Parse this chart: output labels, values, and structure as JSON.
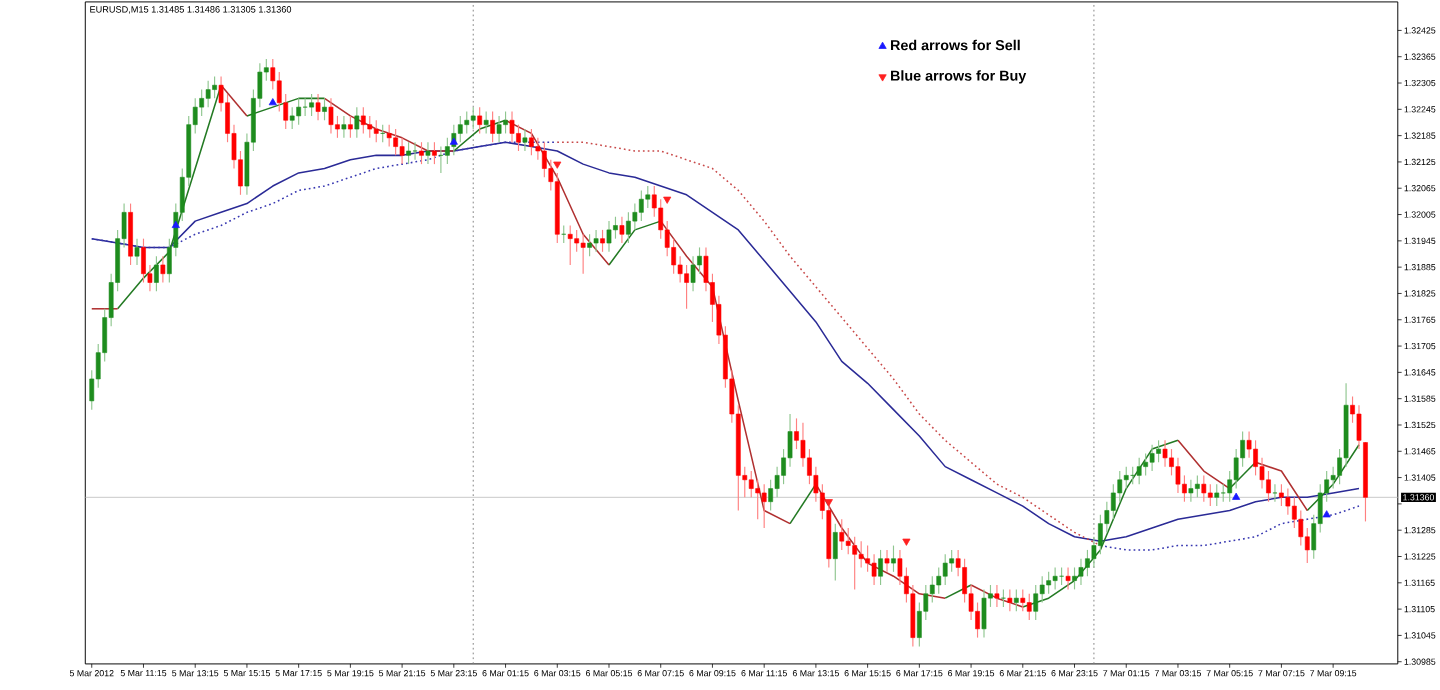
{
  "chart_data": {
    "type": "candlestick",
    "title": "EURUSD,M15  1.31485 1.31486 1.31305 1.31360",
    "x": [
      "2012-03-05T09:15",
      "2012-03-05T09:30",
      "2012-03-05T09:45",
      "2012-03-05T10:00",
      "2012-03-05T10:15",
      "2012-03-05T10:30",
      "2012-03-05T10:45",
      "2012-03-05T11:00",
      "2012-03-05T11:15",
      "2012-03-05T11:30",
      "2012-03-05T11:45",
      "2012-03-05T12:00",
      "2012-03-05T12:15",
      "2012-03-05T12:30",
      "2012-03-05T12:45",
      "2012-03-05T13:00",
      "2012-03-05T13:15",
      "2012-03-05T13:30",
      "2012-03-05T13:45",
      "2012-03-05T14:00",
      "2012-03-05T14:15",
      "2012-03-05T14:30",
      "2012-03-05T14:45",
      "2012-03-05T15:00",
      "2012-03-05T15:15",
      "2012-03-05T15:30",
      "2012-03-05T15:45",
      "2012-03-05T16:00",
      "2012-03-05T16:15",
      "2012-03-05T16:30",
      "2012-03-05T16:45",
      "2012-03-05T17:00",
      "2012-03-05T17:15",
      "2012-03-05T17:30",
      "2012-03-05T17:45",
      "2012-03-05T18:00",
      "2012-03-05T18:15",
      "2012-03-05T18:30",
      "2012-03-05T18:45",
      "2012-03-05T19:00",
      "2012-03-05T19:15",
      "2012-03-05T19:30",
      "2012-03-05T19:45",
      "2012-03-05T20:00",
      "2012-03-05T20:15",
      "2012-03-05T20:30",
      "2012-03-05T20:45",
      "2012-03-05T21:00",
      "2012-03-05T21:15",
      "2012-03-05T21:30",
      "2012-03-05T21:45",
      "2012-03-05T22:00",
      "2012-03-05T22:15",
      "2012-03-05T22:30",
      "2012-03-05T22:45",
      "2012-03-05T23:00",
      "2012-03-05T23:15",
      "2012-03-05T23:30",
      "2012-03-05T23:45",
      "2012-03-06T00:00",
      "2012-03-06T00:15",
      "2012-03-06T00:30",
      "2012-03-06T00:45",
      "2012-03-06T01:00",
      "2012-03-06T01:15",
      "2012-03-06T01:30",
      "2012-03-06T01:45",
      "2012-03-06T02:00",
      "2012-03-06T02:15",
      "2012-03-06T02:30",
      "2012-03-06T02:45",
      "2012-03-06T03:00",
      "2012-03-06T03:15",
      "2012-03-06T03:30",
      "2012-03-06T03:45",
      "2012-03-06T04:00",
      "2012-03-06T04:15",
      "2012-03-06T04:30",
      "2012-03-06T04:45",
      "2012-03-06T05:00",
      "2012-03-06T05:15",
      "2012-03-06T05:30",
      "2012-03-06T05:45",
      "2012-03-06T06:00",
      "2012-03-06T06:15",
      "2012-03-06T06:30",
      "2012-03-06T06:45",
      "2012-03-06T07:00",
      "2012-03-06T07:15",
      "2012-03-06T07:30",
      "2012-03-06T07:45",
      "2012-03-06T08:00",
      "2012-03-06T08:15",
      "2012-03-06T08:30",
      "2012-03-06T08:45",
      "2012-03-06T09:00",
      "2012-03-06T09:15",
      "2012-03-06T09:30",
      "2012-03-06T09:45",
      "2012-03-06T10:00",
      "2012-03-06T10:15",
      "2012-03-06T10:30",
      "2012-03-06T10:45",
      "2012-03-06T11:00",
      "2012-03-06T11:15",
      "2012-03-06T11:30",
      "2012-03-06T11:45",
      "2012-03-06T12:00",
      "2012-03-06T12:15",
      "2012-03-06T12:30",
      "2012-03-06T12:45",
      "2012-03-06T13:00",
      "2012-03-06T13:15",
      "2012-03-06T13:30",
      "2012-03-06T13:45",
      "2012-03-06T14:00",
      "2012-03-06T14:15",
      "2012-03-06T14:30",
      "2012-03-06T14:45",
      "2012-03-06T15:00",
      "2012-03-06T15:15",
      "2012-03-06T15:30",
      "2012-03-06T15:45",
      "2012-03-06T16:00",
      "2012-03-06T16:15",
      "2012-03-06T16:30",
      "2012-03-06T16:45",
      "2012-03-06T17:00",
      "2012-03-06T17:15",
      "2012-03-06T17:30",
      "2012-03-06T17:45",
      "2012-03-06T18:00",
      "2012-03-06T18:15",
      "2012-03-06T18:30",
      "2012-03-06T18:45",
      "2012-03-06T19:00",
      "2012-03-06T19:15",
      "2012-03-06T19:30",
      "2012-03-06T19:45",
      "2012-03-06T20:00",
      "2012-03-06T20:15",
      "2012-03-06T20:30",
      "2012-03-06T20:45",
      "2012-03-06T21:00",
      "2012-03-06T21:15",
      "2012-03-06T21:30",
      "2012-03-06T21:45",
      "2012-03-06T22:00",
      "2012-03-06T22:15",
      "2012-03-06T22:30",
      "2012-03-06T22:45",
      "2012-03-06T23:00",
      "2012-03-06T23:15",
      "2012-03-06T23:30",
      "2012-03-06T23:45",
      "2012-03-07T00:00",
      "2012-03-07T00:15",
      "2012-03-07T00:30",
      "2012-03-07T00:45",
      "2012-03-07T01:00",
      "2012-03-07T01:15",
      "2012-03-07T01:30",
      "2012-03-07T01:45",
      "2012-03-07T02:00",
      "2012-03-07T02:15",
      "2012-03-07T02:30",
      "2012-03-07T02:45",
      "2012-03-07T03:00",
      "2012-03-07T03:15",
      "2012-03-07T03:30",
      "2012-03-07T03:45",
      "2012-03-07T04:00",
      "2012-03-07T04:15",
      "2012-03-07T04:30",
      "2012-03-07T04:45",
      "2012-03-07T05:00",
      "2012-03-07T05:15",
      "2012-03-07T05:30",
      "2012-03-07T05:45",
      "2012-03-07T06:00",
      "2012-03-07T06:15",
      "2012-03-07T06:30",
      "2012-03-07T06:45",
      "2012-03-07T07:00",
      "2012-03-07T07:15",
      "2012-03-07T07:30",
      "2012-03-07T07:45",
      "2012-03-07T08:00",
      "2012-03-07T08:15",
      "2012-03-07T08:30",
      "2012-03-07T08:45",
      "2012-03-07T09:00",
      "2012-03-07T09:15",
      "2012-03-07T09:30",
      "2012-03-07T09:45",
      "2012-03-07T10:00",
      "2012-03-07T10:15",
      "2012-03-07T10:30"
    ],
    "ohlc": [
      [
        1.3158,
        1.3165,
        1.3156,
        1.3163
      ],
      [
        1.3163,
        1.3171,
        1.3161,
        1.3169
      ],
      [
        1.3169,
        1.3179,
        1.3167,
        1.3177
      ],
      [
        1.3177,
        1.3187,
        1.3175,
        1.3185
      ],
      [
        1.3185,
        1.3197,
        1.3183,
        1.3195
      ],
      [
        1.3195,
        1.3203,
        1.3193,
        1.3201
      ],
      [
        1.3201,
        1.3203,
        1.3189,
        1.3191
      ],
      [
        1.3191,
        1.3195,
        1.3189,
        1.3193
      ],
      [
        1.3193,
        1.3195,
        1.3185,
        1.3187
      ],
      [
        1.3187,
        1.3189,
        1.3183,
        1.3185
      ],
      [
        1.3185,
        1.3191,
        1.3183,
        1.3189
      ],
      [
        1.3189,
        1.3191,
        1.3185,
        1.3187
      ],
      [
        1.3187,
        1.3195,
        1.3185,
        1.3193
      ],
      [
        1.3193,
        1.3203,
        1.3191,
        1.3201
      ],
      [
        1.3201,
        1.3211,
        1.3199,
        1.3209
      ],
      [
        1.3209,
        1.3223,
        1.3207,
        1.3221
      ],
      [
        1.3221,
        1.3227,
        1.3219,
        1.3225
      ],
      [
        1.3225,
        1.3229,
        1.3223,
        1.3227
      ],
      [
        1.3227,
        1.3231,
        1.3225,
        1.3229
      ],
      [
        1.3229,
        1.3232,
        1.3227,
        1.323
      ],
      [
        1.323,
        1.3232,
        1.3224,
        1.3226
      ],
      [
        1.3226,
        1.3228,
        1.3217,
        1.3219
      ],
      [
        1.3219,
        1.3221,
        1.3211,
        1.3213
      ],
      [
        1.3213,
        1.3215,
        1.3205,
        1.3207
      ],
      [
        1.3207,
        1.3219,
        1.3205,
        1.3217
      ],
      [
        1.3217,
        1.3229,
        1.3215,
        1.3227
      ],
      [
        1.3227,
        1.3235,
        1.3225,
        1.3233
      ],
      [
        1.3233,
        1.3236,
        1.3231,
        1.3234
      ],
      [
        1.3234,
        1.3236,
        1.3229,
        1.3231
      ],
      [
        1.3231,
        1.3233,
        1.3224,
        1.3226
      ],
      [
        1.3226,
        1.3228,
        1.322,
        1.3222
      ],
      [
        1.3222,
        1.3225,
        1.322,
        1.3223
      ],
      [
        1.3223,
        1.3227,
        1.3221,
        1.3225
      ],
      [
        1.3225,
        1.3227,
        1.3223,
        1.3225
      ],
      [
        1.3225,
        1.3228,
        1.3223,
        1.3226
      ],
      [
        1.3226,
        1.3228,
        1.3222,
        1.3224
      ],
      [
        1.3224,
        1.3227,
        1.3222,
        1.3225
      ],
      [
        1.3225,
        1.3227,
        1.3219,
        1.3221
      ],
      [
        1.3221,
        1.3223,
        1.3218,
        1.322
      ],
      [
        1.322,
        1.3223,
        1.3218,
        1.3221
      ],
      [
        1.3221,
        1.3223,
        1.3218,
        1.322
      ],
      [
        1.322,
        1.3225,
        1.3218,
        1.3223
      ],
      [
        1.3223,
        1.3225,
        1.3219,
        1.3221
      ],
      [
        1.3221,
        1.3223,
        1.3218,
        1.322
      ],
      [
        1.322,
        1.3222,
        1.3217,
        1.3219
      ],
      [
        1.3219,
        1.3221,
        1.3217,
        1.3219
      ],
      [
        1.3219,
        1.3221,
        1.3216,
        1.3218
      ],
      [
        1.3218,
        1.322,
        1.3214,
        1.3216
      ],
      [
        1.3216,
        1.3218,
        1.3212,
        1.3214
      ],
      [
        1.3214,
        1.3217,
        1.3212,
        1.3215
      ],
      [
        1.3215,
        1.3217,
        1.3213,
        1.3215
      ],
      [
        1.3215,
        1.3217,
        1.3212,
        1.3214
      ],
      [
        1.3214,
        1.3217,
        1.3212,
        1.3215
      ],
      [
        1.3215,
        1.3217,
        1.3212,
        1.3214
      ],
      [
        1.3214,
        1.3216,
        1.321,
        1.3214
      ],
      [
        1.3214,
        1.3218,
        1.3212,
        1.3216
      ],
      [
        1.3216,
        1.3221,
        1.3214,
        1.3219
      ],
      [
        1.3219,
        1.3223,
        1.3217,
        1.3221
      ],
      [
        1.3221,
        1.3224,
        1.3219,
        1.3222
      ],
      [
        1.3222,
        1.3225,
        1.322,
        1.3223
      ],
      [
        1.3223,
        1.3225,
        1.3219,
        1.3221
      ],
      [
        1.3221,
        1.3224,
        1.3219,
        1.3222
      ],
      [
        1.3222,
        1.3224,
        1.3217,
        1.3219
      ],
      [
        1.3219,
        1.3223,
        1.3217,
        1.3221
      ],
      [
        1.3221,
        1.3224,
        1.3219,
        1.3222
      ],
      [
        1.3222,
        1.3224,
        1.3217,
        1.3219
      ],
      [
        1.3219,
        1.3221,
        1.3215,
        1.3217
      ],
      [
        1.3217,
        1.322,
        1.3215,
        1.3218
      ],
      [
        1.3218,
        1.322,
        1.3214,
        1.3216
      ],
      [
        1.3216,
        1.3218,
        1.3213,
        1.3215
      ],
      [
        1.3215,
        1.3217,
        1.3209,
        1.3211
      ],
      [
        1.3211,
        1.3213,
        1.3206,
        1.3208
      ],
      [
        1.3208,
        1.321,
        1.3194,
        1.3196
      ],
      [
        1.3196,
        1.3198,
        1.3194,
        1.3196
      ],
      [
        1.3196,
        1.3198,
        1.3189,
        1.3195
      ],
      [
        1.3195,
        1.3197,
        1.3192,
        1.3194
      ],
      [
        1.3194,
        1.3196,
        1.3187,
        1.3193
      ],
      [
        1.3193,
        1.3196,
        1.3191,
        1.3194
      ],
      [
        1.3194,
        1.3197,
        1.3192,
        1.3195
      ],
      [
        1.3195,
        1.3197,
        1.3192,
        1.3194
      ],
      [
        1.3194,
        1.3199,
        1.3192,
        1.3197
      ],
      [
        1.3197,
        1.32,
        1.3195,
        1.3198
      ],
      [
        1.3198,
        1.32,
        1.3194,
        1.3196
      ],
      [
        1.3196,
        1.3201,
        1.3194,
        1.3199
      ],
      [
        1.3199,
        1.3203,
        1.3197,
        1.3201
      ],
      [
        1.3201,
        1.3206,
        1.3199,
        1.3204
      ],
      [
        1.3204,
        1.3207,
        1.3202,
        1.3205
      ],
      [
        1.3205,
        1.3207,
        1.32,
        1.3202
      ],
      [
        1.3202,
        1.3204,
        1.3195,
        1.3197
      ],
      [
        1.3197,
        1.3199,
        1.3191,
        1.3193
      ],
      [
        1.3193,
        1.3195,
        1.3187,
        1.3189
      ],
      [
        1.3189,
        1.3191,
        1.3185,
        1.3187
      ],
      [
        1.3187,
        1.3189,
        1.3179,
        1.3185
      ],
      [
        1.3185,
        1.3191,
        1.3183,
        1.3189
      ],
      [
        1.3189,
        1.3193,
        1.3187,
        1.3191
      ],
      [
        1.3191,
        1.3193,
        1.3183,
        1.3185
      ],
      [
        1.3185,
        1.3187,
        1.3176,
        1.318
      ],
      [
        1.318,
        1.3182,
        1.3171,
        1.3173
      ],
      [
        1.3173,
        1.3175,
        1.3161,
        1.3163
      ],
      [
        1.3163,
        1.3165,
        1.3153,
        1.3155
      ],
      [
        1.3155,
        1.3157,
        1.3133,
        1.3141
      ],
      [
        1.3141,
        1.3143,
        1.3136,
        1.314
      ],
      [
        1.314,
        1.3142,
        1.3136,
        1.3138
      ],
      [
        1.3138,
        1.314,
        1.3131,
        1.3137
      ],
      [
        1.3137,
        1.3139,
        1.3129,
        1.3135
      ],
      [
        1.3135,
        1.314,
        1.3133,
        1.3138
      ],
      [
        1.3138,
        1.3143,
        1.3136,
        1.3141
      ],
      [
        1.3141,
        1.3147,
        1.3139,
        1.3145
      ],
      [
        1.3145,
        1.3155,
        1.3143,
        1.3151
      ],
      [
        1.3151,
        1.3154,
        1.3147,
        1.3149
      ],
      [
        1.3149,
        1.3153,
        1.3143,
        1.3145
      ],
      [
        1.3145,
        1.3147,
        1.3139,
        1.3141
      ],
      [
        1.3141,
        1.3143,
        1.3135,
        1.3137
      ],
      [
        1.3137,
        1.3139,
        1.3131,
        1.3133
      ],
      [
        1.3133,
        1.3135,
        1.312,
        1.3122
      ],
      [
        1.3122,
        1.313,
        1.3117,
        1.3128
      ],
      [
        1.3128,
        1.3131,
        1.3124,
        1.3126
      ],
      [
        1.3126,
        1.3129,
        1.3123,
        1.3125
      ],
      [
        1.3125,
        1.3127,
        1.3115,
        1.3123
      ],
      [
        1.3123,
        1.3126,
        1.312,
        1.3122
      ],
      [
        1.3122,
        1.3125,
        1.3119,
        1.3121
      ],
      [
        1.3121,
        1.3123,
        1.3116,
        1.3118
      ],
      [
        1.3118,
        1.3124,
        1.3116,
        1.3122
      ],
      [
        1.3122,
        1.3124,
        1.3119,
        1.3121
      ],
      [
        1.3121,
        1.3125,
        1.3119,
        1.3122
      ],
      [
        1.3122,
        1.3124,
        1.3116,
        1.3118
      ],
      [
        1.3118,
        1.312,
        1.3112,
        1.3114
      ],
      [
        1.3114,
        1.3116,
        1.3102,
        1.3104
      ],
      [
        1.3104,
        1.3112,
        1.3102,
        1.311
      ],
      [
        1.311,
        1.3116,
        1.3108,
        1.3114
      ],
      [
        1.3114,
        1.3118,
        1.3112,
        1.3116
      ],
      [
        1.3116,
        1.312,
        1.3114,
        1.3118
      ],
      [
        1.3118,
        1.3123,
        1.3116,
        1.3121
      ],
      [
        1.3121,
        1.3124,
        1.3119,
        1.3122
      ],
      [
        1.3122,
        1.3124,
        1.3118,
        1.312
      ],
      [
        1.312,
        1.3122,
        1.3112,
        1.3114
      ],
      [
        1.3114,
        1.3116,
        1.3108,
        1.311
      ],
      [
        1.311,
        1.3112,
        1.3104,
        1.3106
      ],
      [
        1.3106,
        1.3115,
        1.3104,
        1.3113
      ],
      [
        1.3113,
        1.3116,
        1.3111,
        1.3114
      ],
      [
        1.3114,
        1.3116,
        1.3111,
        1.3113
      ],
      [
        1.3113,
        1.3115,
        1.3111,
        1.3113
      ],
      [
        1.3113,
        1.3115,
        1.311,
        1.3112
      ],
      [
        1.3112,
        1.3115,
        1.311,
        1.3113
      ],
      [
        1.3113,
        1.3115,
        1.311,
        1.3112
      ],
      [
        1.3112,
        1.3114,
        1.3108,
        1.311
      ],
      [
        1.311,
        1.3116,
        1.3108,
        1.3114
      ],
      [
        1.3114,
        1.3118,
        1.3112,
        1.3116
      ],
      [
        1.3116,
        1.3119,
        1.3114,
        1.3117
      ],
      [
        1.3117,
        1.312,
        1.3115,
        1.3118
      ],
      [
        1.3118,
        1.312,
        1.3116,
        1.3118
      ],
      [
        1.3118,
        1.312,
        1.3115,
        1.3117
      ],
      [
        1.3117,
        1.312,
        1.3115,
        1.3118
      ],
      [
        1.3118,
        1.3122,
        1.3116,
        1.312
      ],
      [
        1.312,
        1.3124,
        1.3118,
        1.3122
      ],
      [
        1.3122,
        1.3127,
        1.312,
        1.3125
      ],
      [
        1.3125,
        1.3132,
        1.3123,
        1.313
      ],
      [
        1.313,
        1.3135,
        1.3128,
        1.3133
      ],
      [
        1.3133,
        1.3139,
        1.3131,
        1.3137
      ],
      [
        1.3137,
        1.3142,
        1.3135,
        1.314
      ],
      [
        1.314,
        1.3143,
        1.3138,
        1.3141
      ],
      [
        1.3141,
        1.3143,
        1.3139,
        1.3141
      ],
      [
        1.3141,
        1.3145,
        1.3139,
        1.3143
      ],
      [
        1.3143,
        1.3146,
        1.3141,
        1.3144
      ],
      [
        1.3144,
        1.3148,
        1.3142,
        1.3146
      ],
      [
        1.3146,
        1.3149,
        1.3144,
        1.3147
      ],
      [
        1.3147,
        1.3149,
        1.3143,
        1.3145
      ],
      [
        1.3145,
        1.3147,
        1.3141,
        1.3143
      ],
      [
        1.3143,
        1.3145,
        1.3137,
        1.3139
      ],
      [
        1.3139,
        1.3141,
        1.3135,
        1.3137
      ],
      [
        1.3137,
        1.314,
        1.3135,
        1.3138
      ],
      [
        1.3138,
        1.3141,
        1.3136,
        1.3139
      ],
      [
        1.3139,
        1.3141,
        1.3135,
        1.3137
      ],
      [
        1.3137,
        1.3139,
        1.3134,
        1.3136
      ],
      [
        1.3136,
        1.3139,
        1.3134,
        1.3137
      ],
      [
        1.3137,
        1.3139,
        1.3135,
        1.3137
      ],
      [
        1.3137,
        1.3142,
        1.3135,
        1.314
      ],
      [
        1.314,
        1.3147,
        1.3138,
        1.3145
      ],
      [
        1.3145,
        1.3151,
        1.3143,
        1.3149
      ],
      [
        1.3149,
        1.3151,
        1.3145,
        1.3147
      ],
      [
        1.3147,
        1.3149,
        1.3141,
        1.3143
      ],
      [
        1.3143,
        1.3145,
        1.3138,
        1.314
      ],
      [
        1.314,
        1.3142,
        1.3135,
        1.3137
      ],
      [
        1.3137,
        1.3139,
        1.3135,
        1.3137
      ],
      [
        1.3137,
        1.3139,
        1.3134,
        1.3136
      ],
      [
        1.3136,
        1.3138,
        1.3132,
        1.3134
      ],
      [
        1.3134,
        1.3136,
        1.3129,
        1.3131
      ],
      [
        1.3131,
        1.3133,
        1.3125,
        1.3127
      ],
      [
        1.3127,
        1.3129,
        1.3121,
        1.3124
      ],
      [
        1.3124,
        1.3132,
        1.3122,
        1.313
      ],
      [
        1.313,
        1.3139,
        1.3128,
        1.3137
      ],
      [
        1.3137,
        1.3142,
        1.3135,
        1.314
      ],
      [
        1.314,
        1.3143,
        1.3138,
        1.3141
      ],
      [
        1.3141,
        1.3147,
        1.3139,
        1.3145
      ],
      [
        1.3145,
        1.3162,
        1.3143,
        1.3157
      ],
      [
        1.3157,
        1.3159,
        1.3153,
        1.3155
      ],
      [
        1.3155,
        1.3157,
        1.3147,
        1.3149
      ],
      [
        1.31485,
        1.31486,
        1.31305,
        1.3136
      ]
    ],
    "series": [
      {
        "type": "line",
        "color": "#2a2a96",
        "x": [
          "2012-03-05T09:15",
          "2012-03-05T10:15",
          "2012-03-05T11:15",
          "2012-03-05T12:15",
          "2012-03-05T13:15",
          "2012-03-05T14:15",
          "2012-03-05T15:15",
          "2012-03-05T16:15",
          "2012-03-05T17:15",
          "2012-03-05T18:15",
          "2012-03-05T19:15",
          "2012-03-05T20:15",
          "2012-03-05T21:15",
          "2012-03-05T22:15",
          "2012-03-05T23:15",
          "2012-03-06T00:15",
          "2012-03-06T01:15",
          "2012-03-06T02:15",
          "2012-03-06T03:15",
          "2012-03-06T04:15",
          "2012-03-06T05:15",
          "2012-03-06T06:15",
          "2012-03-06T07:15",
          "2012-03-06T08:15",
          "2012-03-06T09:15",
          "2012-03-06T10:15",
          "2012-03-06T11:15",
          "2012-03-06T12:15",
          "2012-03-06T13:15",
          "2012-03-06T14:15",
          "2012-03-06T15:15",
          "2012-03-06T16:15",
          "2012-03-06T17:15",
          "2012-03-06T18:15",
          "2012-03-06T19:15",
          "2012-03-06T20:15",
          "2012-03-06T21:15",
          "2012-03-06T22:15",
          "2012-03-06T23:15",
          "2012-03-07T00:15",
          "2012-03-07T01:15",
          "2012-03-07T02:15",
          "2012-03-07T03:15",
          "2012-03-07T04:15",
          "2012-03-07T05:15",
          "2012-03-07T06:15",
          "2012-03-07T07:15",
          "2012-03-07T08:15",
          "2012-03-07T09:15",
          "2012-03-07T10:15"
        ],
        "values": [
          1.3195,
          1.3194,
          1.3193,
          1.3193,
          1.3199,
          1.3201,
          1.3203,
          1.3207,
          1.321,
          1.3211,
          1.3213,
          1.3214,
          1.3214,
          1.3215,
          1.3215,
          1.3216,
          1.3217,
          1.3216,
          1.3215,
          1.3212,
          1.321,
          1.3209,
          1.3207,
          1.3205,
          1.3201,
          1.3197,
          1.319,
          1.3183,
          1.3176,
          1.3167,
          1.3162,
          1.3156,
          1.315,
          1.3143,
          1.314,
          1.3137,
          1.3134,
          1.313,
          1.3127,
          1.3126,
          1.3127,
          1.3129,
          1.3131,
          1.3132,
          1.3133,
          1.3135,
          1.3136,
          1.3136,
          1.3137,
          1.3138
        ]
      },
      {
        "type": "line",
        "color": "#3636b0",
        "line_style": "dotted",
        "x": [
          "2012-03-05T09:15",
          "2012-03-05T10:15",
          "2012-03-05T11:15",
          "2012-03-05T12:15",
          "2012-03-05T13:15",
          "2012-03-05T14:15",
          "2012-03-05T15:15",
          "2012-03-05T16:15",
          "2012-03-05T17:15",
          "2012-03-05T18:15",
          "2012-03-05T19:15",
          "2012-03-05T20:15",
          "2012-03-05T21:15",
          "2012-03-05T22:15",
          "2012-03-05T23:15",
          "2012-03-06T00:15",
          "2012-03-06T01:15",
          "2012-03-06T02:15",
          "2012-03-06T03:15"
        ],
        "values": [
          1.3195,
          1.3194,
          1.3193,
          1.3193,
          1.3196,
          1.3198,
          1.3201,
          1.3203,
          1.3206,
          1.3207,
          1.3209,
          1.3211,
          1.3212,
          1.3213,
          1.3215,
          1.3216,
          1.3217,
          1.3217,
          1.3217
        ]
      },
      {
        "type": "line",
        "color": "#3636b0",
        "line_style": "dotted",
        "x": [
          "2012-03-07T00:15",
          "2012-03-07T01:15",
          "2012-03-07T02:15",
          "2012-03-07T03:15",
          "2012-03-07T04:15",
          "2012-03-07T05:15",
          "2012-03-07T06:15",
          "2012-03-07T07:15",
          "2012-03-07T08:15",
          "2012-03-07T09:15",
          "2012-03-07T10:15"
        ],
        "values": [
          1.3125,
          1.3124,
          1.3124,
          1.3125,
          1.3125,
          1.3126,
          1.3127,
          1.313,
          1.3131,
          1.3132,
          1.3134
        ]
      },
      {
        "type": "line",
        "color": "#c84848",
        "line_style": "dotted",
        "x": [
          "2012-03-06T03:15",
          "2012-03-06T04:15",
          "2012-03-06T05:15",
          "2012-03-06T06:15",
          "2012-03-06T07:15",
          "2012-03-06T08:15",
          "2012-03-06T09:15",
          "2012-03-06T10:15",
          "2012-03-06T11:15",
          "2012-03-06T12:15",
          "2012-03-06T13:15",
          "2012-03-06T14:15",
          "2012-03-06T15:15",
          "2012-03-06T16:15",
          "2012-03-06T17:15",
          "2012-03-06T18:15",
          "2012-03-06T19:15",
          "2012-03-06T20:15",
          "2012-03-06T21:15",
          "2012-03-06T22:15",
          "2012-03-06T23:15",
          "2012-03-07T00:15"
        ],
        "values": [
          1.3217,
          1.3217,
          1.3216,
          1.3215,
          1.3215,
          1.3213,
          1.3211,
          1.3206,
          1.3199,
          1.3191,
          1.3184,
          1.3177,
          1.317,
          1.3163,
          1.3155,
          1.3149,
          1.3144,
          1.3139,
          1.3136,
          1.3132,
          1.3128,
          1.3125
        ]
      },
      {
        "type": "line",
        "color": "#237a23",
        "x": [
          "2012-03-05T10:15",
          "2012-03-05T11:15",
          "2012-03-05T12:15",
          "2012-03-05T13:15",
          "2012-03-05T14:15"
        ],
        "values": [
          1.3179,
          1.3186,
          1.3192,
          1.3211,
          1.323
        ]
      },
      {
        "type": "line",
        "color": "#237a23",
        "x": [
          "2012-03-05T15:15",
          "2012-03-05T16:15",
          "2012-03-05T17:15",
          "2012-03-05T18:15"
        ],
        "values": [
          1.3223,
          1.3225,
          1.3227,
          1.3227
        ]
      },
      {
        "type": "line",
        "color": "#237a23",
        "x": [
          "2012-03-05T23:15",
          "2012-03-06T00:15",
          "2012-03-06T01:15"
        ],
        "values": [
          1.3215,
          1.322,
          1.3222
        ]
      },
      {
        "type": "line",
        "color": "#237a23",
        "x": [
          "2012-03-06T05:15",
          "2012-03-06T06:15",
          "2012-03-06T07:15"
        ],
        "values": [
          1.3189,
          1.3197,
          1.3199
        ]
      },
      {
        "type": "line",
        "color": "#237a23",
        "x": [
          "2012-03-06T12:15",
          "2012-03-06T13:15"
        ],
        "values": [
          1.313,
          1.3139
        ]
      },
      {
        "type": "line",
        "color": "#237a23",
        "x": [
          "2012-03-06T18:15",
          "2012-03-06T19:15"
        ],
        "values": [
          1.3113,
          1.3116
        ]
      },
      {
        "type": "line",
        "color": "#237a23",
        "x": [
          "2012-03-06T21:15",
          "2012-03-06T22:15",
          "2012-03-06T23:15",
          "2012-03-07T00:15",
          "2012-03-07T01:15",
          "2012-03-07T02:15",
          "2012-03-07T03:15"
        ],
        "values": [
          1.3111,
          1.3113,
          1.3117,
          1.3124,
          1.3138,
          1.3147,
          1.3149
        ]
      },
      {
        "type": "line",
        "color": "#237a23",
        "x": [
          "2012-03-07T05:15",
          "2012-03-07T06:15"
        ],
        "values": [
          1.3138,
          1.3144
        ]
      },
      {
        "type": "line",
        "color": "#237a23",
        "x": [
          "2012-03-07T08:15",
          "2012-03-07T09:15",
          "2012-03-07T10:15"
        ],
        "values": [
          1.3133,
          1.3139,
          1.3148
        ]
      },
      {
        "type": "line",
        "color": "#b03030",
        "x": [
          "2012-03-05T09:15",
          "2012-03-05T10:15"
        ],
        "values": [
          1.3179,
          1.3179
        ]
      },
      {
        "type": "line",
        "color": "#b03030",
        "x": [
          "2012-03-05T14:15",
          "2012-03-05T15:15"
        ],
        "values": [
          1.323,
          1.3223
        ]
      },
      {
        "type": "line",
        "color": "#b03030",
        "x": [
          "2012-03-05T18:15",
          "2012-03-05T19:15",
          "2012-03-05T20:15",
          "2012-03-05T21:15",
          "2012-03-05T22:15",
          "2012-03-05T23:15"
        ],
        "values": [
          1.3227,
          1.3223,
          1.322,
          1.3218,
          1.3215,
          1.3215
        ]
      },
      {
        "type": "line",
        "color": "#b03030",
        "x": [
          "2012-03-06T01:15",
          "2012-03-06T02:15",
          "2012-03-06T03:15",
          "2012-03-06T04:15",
          "2012-03-06T05:15"
        ],
        "values": [
          1.3222,
          1.3219,
          1.3209,
          1.3196,
          1.3189
        ]
      },
      {
        "type": "line",
        "color": "#b03030",
        "x": [
          "2012-03-06T07:15",
          "2012-03-06T08:15",
          "2012-03-06T09:15",
          "2012-03-06T10:15",
          "2012-03-06T11:15",
          "2012-03-06T12:15"
        ],
        "values": [
          1.3199,
          1.3191,
          1.3184,
          1.3158,
          1.3133,
          1.313
        ]
      },
      {
        "type": "line",
        "color": "#b03030",
        "x": [
          "2012-03-06T13:15",
          "2012-03-06T14:15",
          "2012-03-06T15:15",
          "2012-03-06T16:15",
          "2012-03-06T17:15",
          "2012-03-06T18:15"
        ],
        "values": [
          1.3139,
          1.3129,
          1.3121,
          1.3118,
          1.3114,
          1.3113
        ]
      },
      {
        "type": "line",
        "color": "#b03030",
        "x": [
          "2012-03-06T19:15",
          "2012-03-06T20:15",
          "2012-03-06T21:15"
        ],
        "values": [
          1.3116,
          1.3113,
          1.3111
        ]
      },
      {
        "type": "line",
        "color": "#b03030",
        "x": [
          "2012-03-07T03:15",
          "2012-03-07T04:15",
          "2012-03-07T05:15"
        ],
        "values": [
          1.3149,
          1.3142,
          1.3138
        ]
      },
      {
        "type": "line",
        "color": "#b03030",
        "x": [
          "2012-03-07T06:15",
          "2012-03-07T07:15",
          "2012-03-07T08:15"
        ],
        "values": [
          1.3144,
          1.3142,
          1.3133
        ]
      },
      {
        "type": "scatter",
        "name": "Red arrows for Sell",
        "color": "#1a1aff",
        "marker": "triangle",
        "x": [
          "2012-03-05T12:30",
          "2012-03-05T16:15",
          "2012-03-05T23:15",
          "2012-03-07T05:30",
          "2012-03-07T09:00"
        ],
        "values": [
          1.3198,
          1.3226,
          1.3217,
          1.3136,
          1.3132
        ]
      },
      {
        "type": "scatter",
        "name": "Blue arrows for Buy",
        "color": "#ff2020",
        "marker": "triangle",
        "x": [
          "2012-03-06T03:15",
          "2012-03-06T07:30",
          "2012-03-06T13:45",
          "2012-03-06T16:45"
        ],
        "values": [
          1.3212,
          1.3204,
          1.3135,
          1.3126
        ]
      }
    ],
    "legend": "top",
    "ref_lines": [
      {
        "axis": "x",
        "value": "2012-03-06T00:00",
        "color": "#808080",
        "line_style": "dotted"
      },
      {
        "axis": "x",
        "value": "2012-03-07T00:00",
        "color": "#808080",
        "line_style": "dotted"
      },
      {
        "axis": "y",
        "value": 1.3136,
        "label": "1.31360",
        "color": "#c8c8c8",
        "line_style": "solid"
      }
    ],
    "xlim": [
      "2012-03-05T09:00",
      "2012-03-07T11:45"
    ],
    "ylim": [
      1.3098,
      1.3249
    ],
    "xticks": [
      {
        "value": "2012-03-05T09:15",
        "label": "5 Mar 2012"
      },
      {
        "value": "2012-03-05T11:15",
        "label": "5 Mar 11:15"
      },
      {
        "value": "2012-03-05T13:15",
        "label": "5 Mar 13:15"
      },
      {
        "value": "2012-03-05T15:15",
        "label": "5 Mar 15:15"
      },
      {
        "value": "2012-03-05T17:15",
        "label": "5 Mar 17:15"
      },
      {
        "value": "2012-03-05T19:15",
        "label": "5 Mar 19:15"
      },
      {
        "value": "2012-03-05T21:15",
        "label": "5 Mar 21:15"
      },
      {
        "value": "2012-03-05T23:15",
        "label": "5 Mar 23:15"
      },
      {
        "value": "2012-03-06T01:15",
        "label": "6 Mar 01:15"
      },
      {
        "value": "2012-03-06T03:15",
        "label": "6 Mar 03:15"
      },
      {
        "value": "2012-03-06T05:15",
        "label": "6 Mar 05:15"
      },
      {
        "value": "2012-03-06T07:15",
        "label": "6 Mar 07:15"
      },
      {
        "value": "2012-03-06T09:15",
        "label": "6 Mar 09:15"
      },
      {
        "value": "2012-03-06T11:15",
        "label": "6 Mar 11:15"
      },
      {
        "value": "2012-03-06T13:15",
        "label": "6 Mar 13:15"
      },
      {
        "value": "2012-03-06T15:15",
        "label": "6 Mar 15:15"
      },
      {
        "value": "2012-03-06T17:15",
        "label": "6 Mar 17:15"
      },
      {
        "value": "2012-03-06T19:15",
        "label": "6 Mar 19:15"
      },
      {
        "value": "2012-03-06T21:15",
        "label": "6 Mar 21:15"
      },
      {
        "value": "2012-03-06T23:15",
        "label": "6 Mar 23:15"
      },
      {
        "value": "2012-03-07T01:15",
        "label": "7 Mar 01:15"
      },
      {
        "value": "2012-03-07T03:15",
        "label": "7 Mar 03:15"
      },
      {
        "value": "2012-03-07T05:15",
        "label": "7 Mar 05:15"
      },
      {
        "value": "2012-03-07T07:15",
        "label": "7 Mar 07:15"
      },
      {
        "value": "2012-03-07T09:15",
        "label": "7 Mar 09:15"
      }
    ],
    "yticks": [
      1.32425,
      1.32365,
      1.32305,
      1.32245,
      1.32185,
      1.32125,
      1.32065,
      1.32005,
      1.31945,
      1.31885,
      1.31825,
      1.31765,
      1.31705,
      1.31645,
      1.31585,
      1.31525,
      1.31465,
      1.31405,
      {
        "value": 1.31345,
        "label": null
      },
      1.31285,
      1.31225,
      1.31165,
      1.31105,
      1.31045,
      1.30985
    ]
  }
}
